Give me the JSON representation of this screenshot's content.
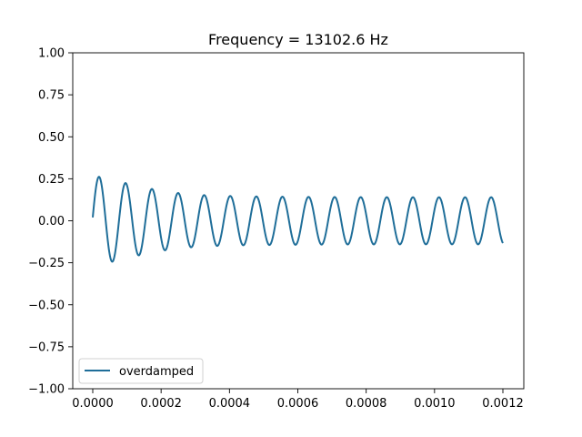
{
  "chart_data": {
    "type": "line",
    "title": "Frequency = 13102.6 Hz",
    "xlabel": "",
    "ylabel": "",
    "xlim": [
      -6e-05,
      0.00126
    ],
    "ylim": [
      -1.0,
      1.0
    ],
    "grid": false,
    "legend_position": "lower left",
    "x_ticks": [
      0.0,
      0.0002,
      0.0004,
      0.0006,
      0.0008,
      0.001,
      0.0012
    ],
    "x_tick_labels": [
      "0.0000",
      "0.0002",
      "0.0004",
      "0.0006",
      "0.0008",
      "0.0010",
      "0.0012"
    ],
    "y_ticks": [
      1.0,
      0.75,
      0.5,
      0.25,
      0.0,
      -0.25,
      -0.5,
      -0.75,
      -1.0
    ],
    "y_tick_labels": [
      "1.00",
      "0.75",
      "0.50",
      "0.25",
      "0.00",
      "−0.25",
      "−0.50",
      "−0.75",
      "−1.00"
    ],
    "series": [
      {
        "name": "overdamped",
        "color": "#1f6e99",
        "description": "Decaying transient settling into steady sinusoid at 13102.6 Hz",
        "x_start": 0.0,
        "x_end": 0.0012,
        "frequency_hz": 13102.6,
        "initial_value": 0.02,
        "first_peak": 0.23,
        "steady_amplitude": 0.14,
        "end_value": -0.05
      }
    ]
  }
}
